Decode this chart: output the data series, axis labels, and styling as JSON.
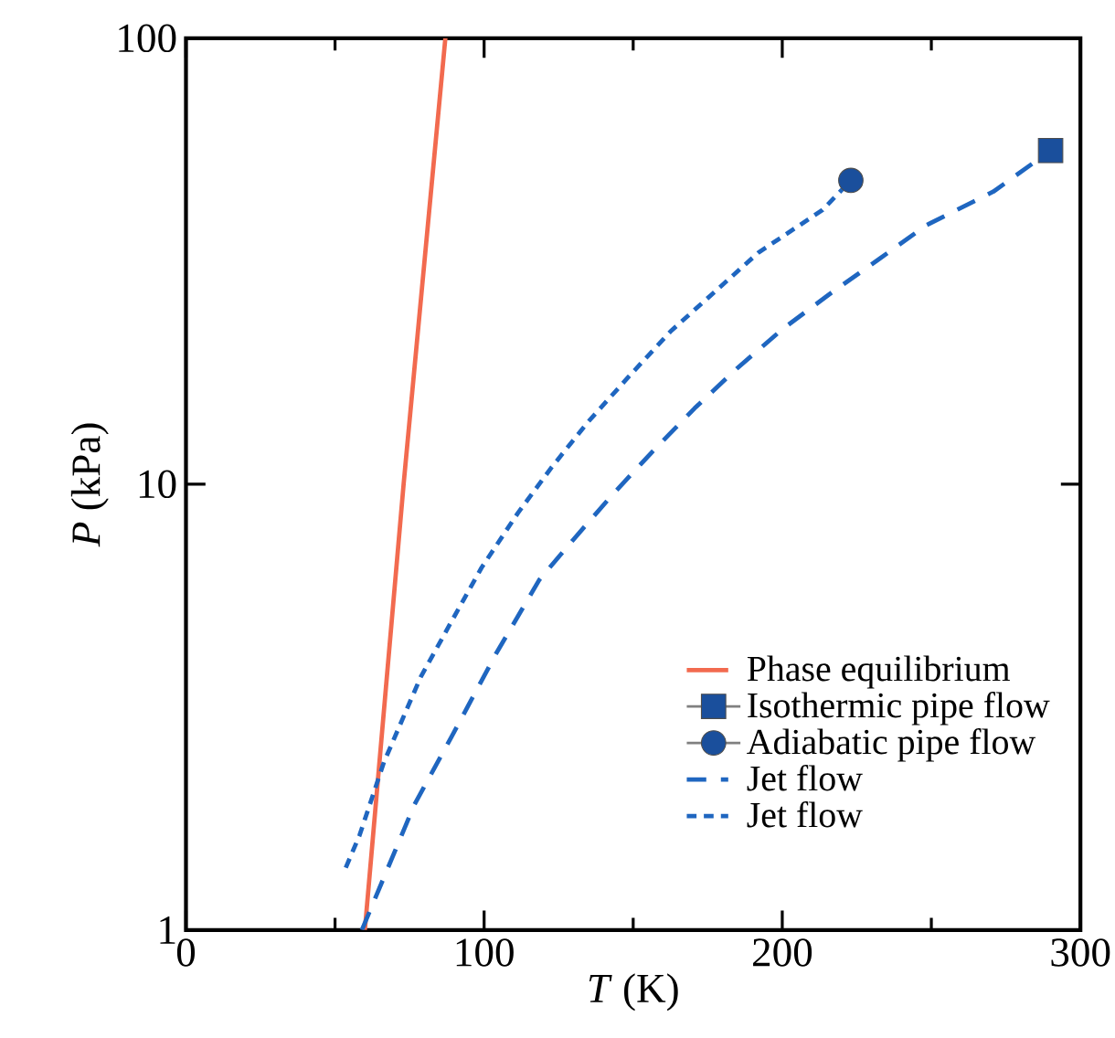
{
  "chart_data": {
    "type": "line",
    "xlabel": "*T* (K)",
    "ylabel": "*P* (kPa)",
    "xlim": [
      0,
      300
    ],
    "xticks": [
      0,
      100,
      200,
      300
    ],
    "ylim": [
      1,
      100
    ],
    "yticks": [
      1,
      10,
      100
    ],
    "log": "y",
    "grid": false,
    "legend": "bottom right",
    "series": [
      {
        "name": "Phase equilibrium",
        "color": "#f26a4f",
        "line_style": "solid",
        "marker": "none",
        "x": [
          60,
          73,
          87
        ],
        "values": [
          1,
          10,
          100
        ]
      },
      {
        "name": "Isothermic pipe flow",
        "type": "scatter",
        "color": "#1a4f9c",
        "marker": "square",
        "x": [
          290
        ],
        "values": [
          56
        ]
      },
      {
        "name": "Adiabatic pipe flow",
        "type": "scatter",
        "color": "#1a4f9c",
        "marker": "circle",
        "x": [
          223
        ],
        "values": [
          48
        ]
      },
      {
        "name": "Jet flow",
        "color": "#1f66c0",
        "line_style": "dashed",
        "marker": "none",
        "x": [
          59,
          76.6,
          88.9,
          104.2,
          118.5,
          129.7,
          143,
          156.3,
          170.6,
          184.9,
          200.2,
          215.6,
          232.8,
          248.4,
          270.8,
          290
        ],
        "values": [
          1,
          1.91,
          2.7,
          4.19,
          6.1,
          7.48,
          9.46,
          11.8,
          14.8,
          18.2,
          22.3,
          26.6,
          32.1,
          38.1,
          45.3,
          56
        ]
      },
      {
        "name": "Jet flow",
        "color": "#1f66c0",
        "line_style": "dotted",
        "marker": "none",
        "x": [
          53.6,
          58.2,
          66.4,
          78.7,
          88.9,
          99.1,
          111.3,
          122.6,
          134.9,
          148.1,
          162.5,
          176.8,
          192.1,
          213.5,
          223
        ],
        "values": [
          1.38,
          1.63,
          2.38,
          3.69,
          4.9,
          6.49,
          8.61,
          10.9,
          13.8,
          17.3,
          22,
          26.8,
          33.1,
          41.2,
          48
        ]
      }
    ]
  }
}
